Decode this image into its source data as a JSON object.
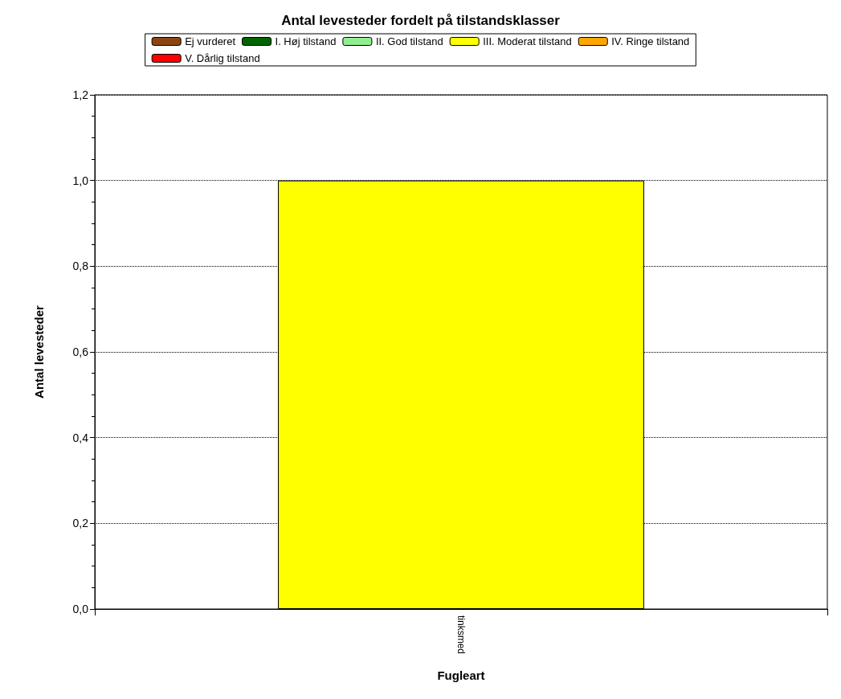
{
  "chart_data": {
    "type": "bar",
    "title": "Antal levesteder fordelt på tilstandsklasser",
    "xlabel": "Fugleart",
    "ylabel": "Antal levesteder",
    "categories": [
      "tinksmed"
    ],
    "series": [
      {
        "name": "Ej vurderet",
        "color": "#8b4513",
        "values": [
          0
        ]
      },
      {
        "name": "I. Høj tilstand",
        "color": "#006400",
        "values": [
          0
        ]
      },
      {
        "name": "II. God tilstand",
        "color": "#90ee90",
        "values": [
          0
        ]
      },
      {
        "name": "III. Moderat tilstand",
        "color": "#ffff00",
        "values": [
          1
        ]
      },
      {
        "name": "IV. Ringe tilstand",
        "color": "#ffa500",
        "values": [
          0
        ]
      },
      {
        "name": "V. Dårlig tilstand",
        "color": "#ff0000",
        "values": [
          0
        ]
      }
    ],
    "stacked": true,
    "ylim": [
      0,
      1.2
    ],
    "yticks": [
      {
        "value": 0,
        "label": "0,0"
      },
      {
        "value": 0.2,
        "label": "0,2"
      },
      {
        "value": 0.4,
        "label": "0,4"
      },
      {
        "value": 0.6,
        "label": "0,6"
      },
      {
        "value": 0.8,
        "label": "0,8"
      },
      {
        "value": 1,
        "label": "1,0"
      },
      {
        "value": 1.2,
        "label": "1,2"
      }
    ],
    "grid": "y",
    "legend": "top"
  }
}
